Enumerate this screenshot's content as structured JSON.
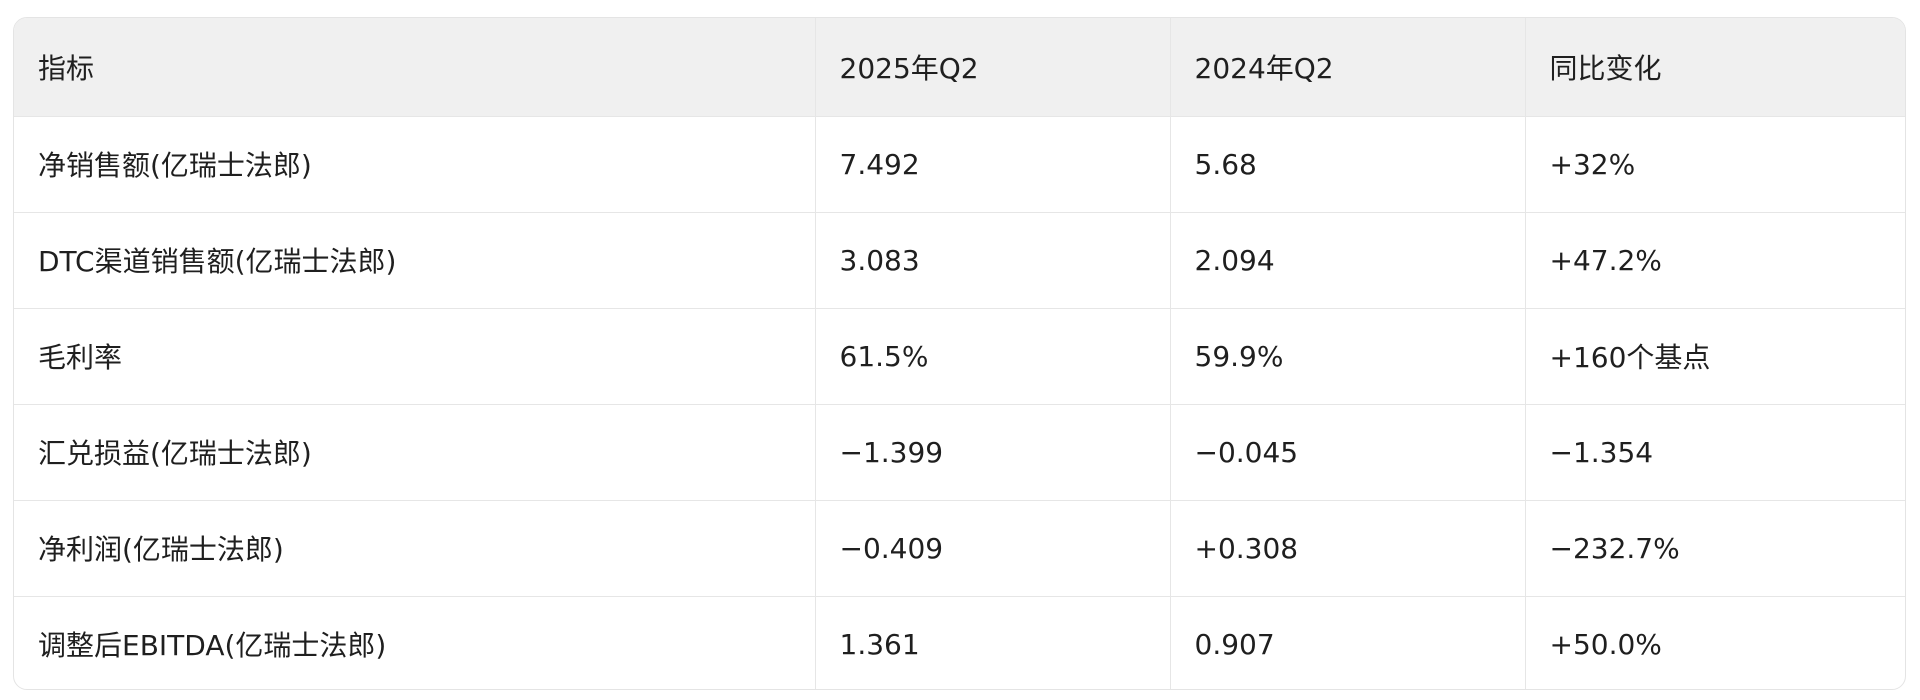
{
  "table": {
    "headers": [
      "指标",
      "2025年Q2",
      "2024年Q2",
      "同比变化"
    ],
    "rows": [
      [
        "净销售额(亿瑞士法郎)",
        "7.492",
        "5.68",
        "+32%"
      ],
      [
        "DTC渠道销售额(亿瑞士法郎)",
        "3.083",
        "2.094",
        "+47.2%"
      ],
      [
        "毛利率",
        "61.5%",
        "59.9%",
        "+160个基点"
      ],
      [
        "汇兑损益(亿瑞士法郎)",
        "−1.399",
        "−0.045",
        "−1.354"
      ],
      [
        "净利润(亿瑞士法郎)",
        "−0.409",
        "+0.308",
        "−232.7%"
      ],
      [
        "调整后EBITDA(亿瑞士法郎)",
        "1.361",
        "0.907",
        "+50.0%"
      ]
    ]
  }
}
